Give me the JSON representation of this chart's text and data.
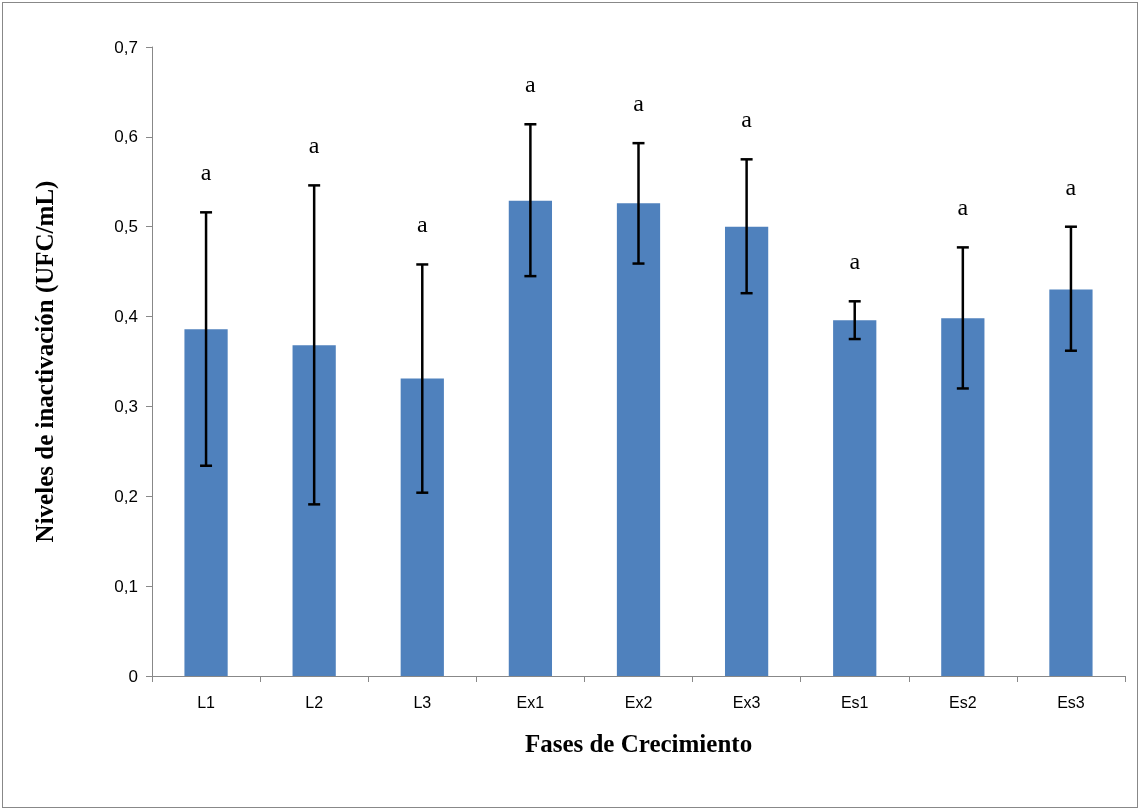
{
  "chart_data": {
    "type": "bar",
    "xlabel": "Fases de Crecimiento",
    "ylabel": "Niveles de inactivación (UFC/mL)",
    "categories": [
      "L1",
      "L2",
      "L3",
      "Ex1",
      "Ex2",
      "Ex3",
      "Es1",
      "Es2",
      "Es3"
    ],
    "values": [
      0.386,
      0.368,
      0.331,
      0.529,
      0.526,
      0.5,
      0.396,
      0.398,
      0.43
    ],
    "errors": [
      [
        0.234,
        0.516
      ],
      [
        0.191,
        0.546
      ],
      [
        0.204,
        0.458
      ],
      [
        0.445,
        0.614
      ],
      [
        0.459,
        0.593
      ],
      [
        0.426,
        0.575
      ],
      [
        0.375,
        0.417
      ],
      [
        0.32,
        0.477
      ],
      [
        0.362,
        0.5
      ]
    ],
    "color": "#4f81bd",
    "ylim": [
      0,
      0.7
    ],
    "yticks": [
      {
        "value": 0,
        "label": "0"
      },
      {
        "value": 0.1,
        "label": "0,1"
      },
      {
        "value": 0.2,
        "label": "0,2"
      },
      {
        "value": 0.3,
        "label": "0,3"
      },
      {
        "value": 0.4,
        "label": "0,4"
      },
      {
        "value": 0.5,
        "label": "0,5"
      },
      {
        "value": 0.6,
        "label": "0,6"
      },
      {
        "value": 0.7,
        "label": "0,7"
      }
    ],
    "grid": false,
    "annotations": [
      "a",
      "a",
      "a",
      "a",
      "a",
      "a",
      "a",
      "a",
      "a"
    ]
  }
}
